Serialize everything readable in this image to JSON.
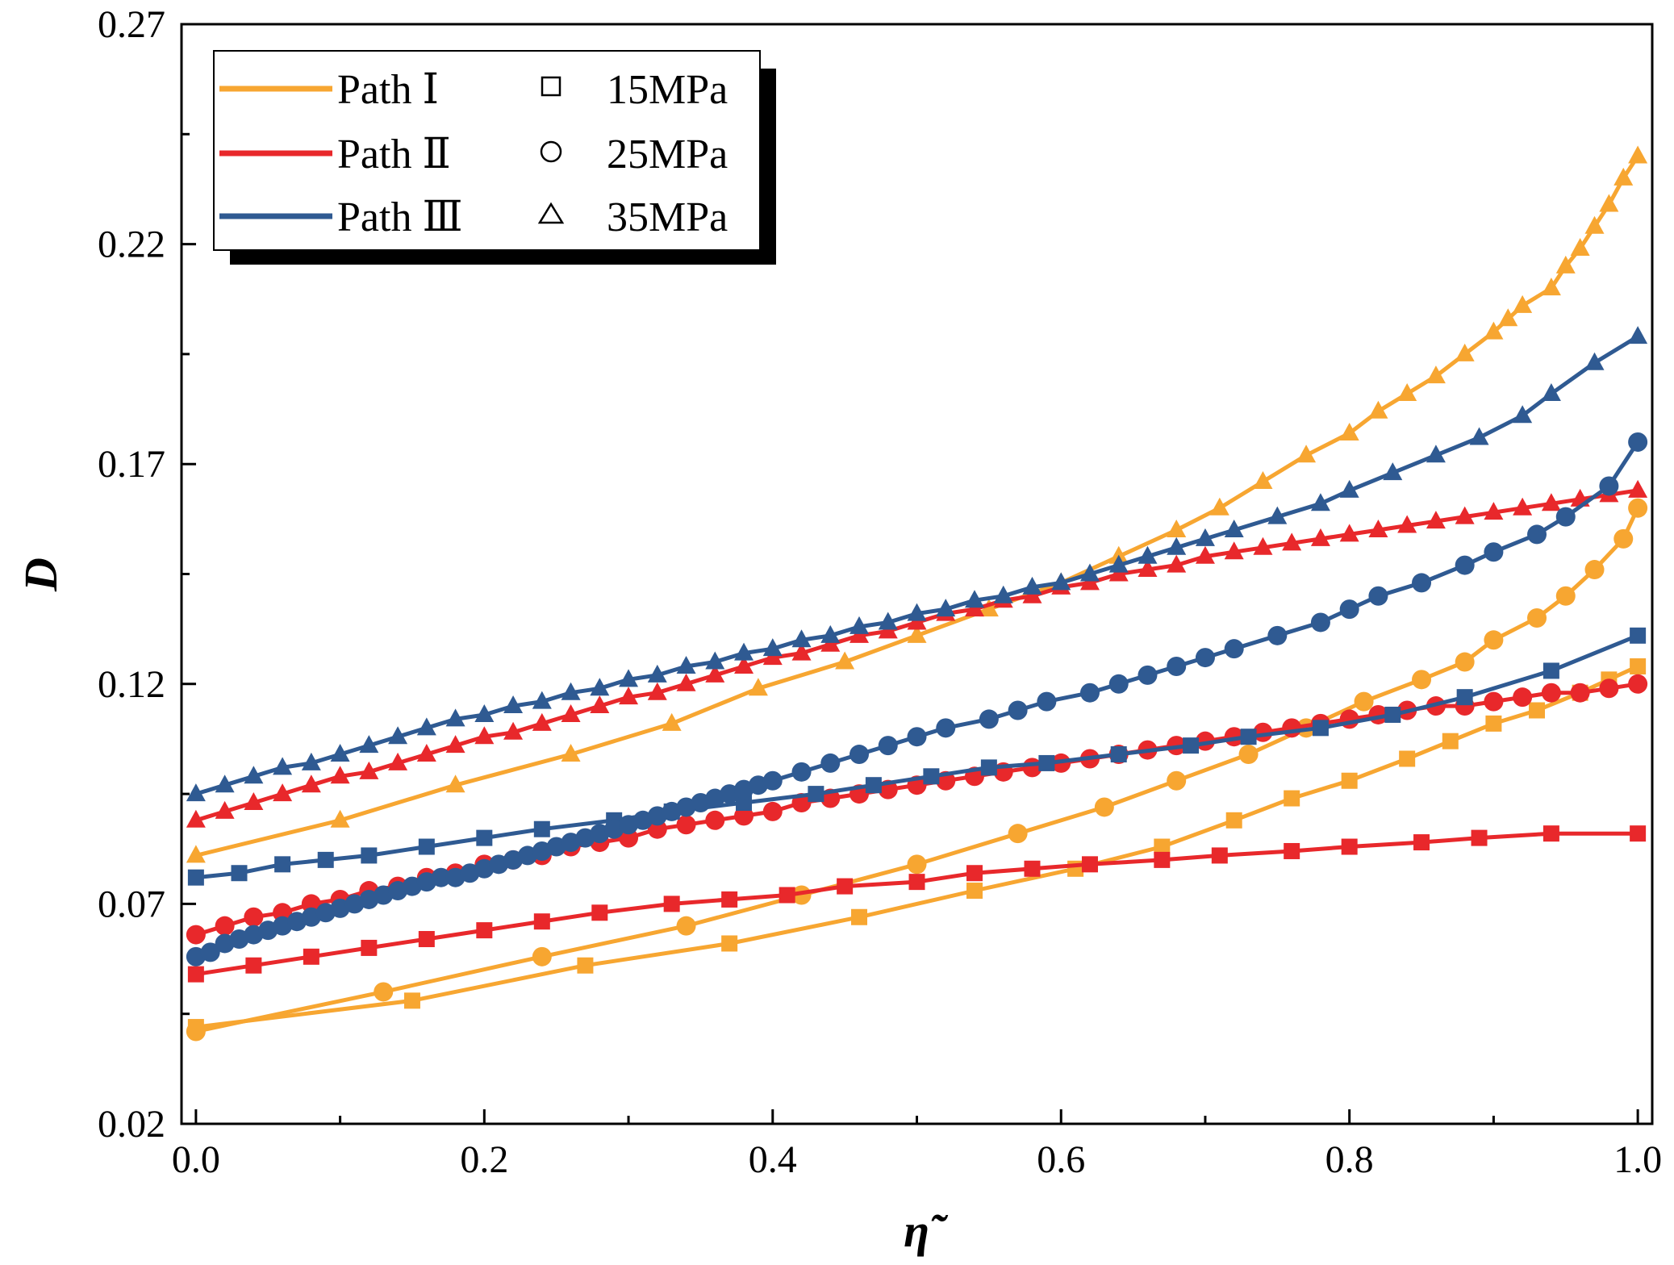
{
  "chart_data": {
    "type": "line",
    "title": "",
    "xlabel": "η̃",
    "ylabel": "D",
    "xlim": [
      -0.01,
      1.01
    ],
    "ylim": [
      0.02,
      0.27
    ],
    "xticks": [
      0.0,
      0.2,
      0.4,
      0.6,
      0.8,
      1.0
    ],
    "xtick_labels": [
      "0.0",
      "0.2",
      "0.4",
      "0.6",
      "0.8",
      "1.0"
    ],
    "yticks": [
      0.02,
      0.07,
      0.12,
      0.17,
      0.22,
      0.27
    ],
    "ytick_labels": [
      "0.02",
      "0.07",
      "0.12",
      "0.17",
      "0.22",
      "0.27"
    ],
    "grid": false,
    "legend_position": "top-left",
    "legend": {
      "paths": [
        {
          "label": "Path Ⅰ",
          "color": "#F7A631"
        },
        {
          "label": "Path Ⅱ",
          "color": "#E8282B"
        },
        {
          "label": "Path Ⅲ",
          "color": "#2F5A92"
        }
      ],
      "pressures": [
        {
          "label": "15MPa",
          "marker": "square"
        },
        {
          "label": "25MPa",
          "marker": "circle"
        },
        {
          "label": "35MPa",
          "marker": "triangle"
        }
      ]
    },
    "series": [
      {
        "path": "Path Ⅰ",
        "pressure": "15MPa",
        "color": "#F7A631",
        "marker": "square",
        "x": [
          0.0,
          0.15,
          0.27,
          0.37,
          0.46,
          0.54,
          0.61,
          0.67,
          0.72,
          0.76,
          0.8,
          0.84,
          0.87,
          0.9,
          0.93,
          0.96,
          0.98,
          1.0
        ],
        "y": [
          0.042,
          0.048,
          0.056,
          0.061,
          0.067,
          0.073,
          0.078,
          0.083,
          0.089,
          0.094,
          0.098,
          0.103,
          0.107,
          0.111,
          0.114,
          0.118,
          0.121,
          0.124
        ]
      },
      {
        "path": "Path Ⅰ",
        "pressure": "25MPa",
        "color": "#F7A631",
        "marker": "circle",
        "x": [
          0.0,
          0.13,
          0.24,
          0.34,
          0.42,
          0.5,
          0.57,
          0.63,
          0.68,
          0.73,
          0.77,
          0.81,
          0.85,
          0.88,
          0.9,
          0.93,
          0.95,
          0.97,
          0.99,
          1.0
        ],
        "y": [
          0.041,
          0.05,
          0.058,
          0.065,
          0.072,
          0.079,
          0.086,
          0.092,
          0.098,
          0.104,
          0.11,
          0.116,
          0.121,
          0.125,
          0.13,
          0.135,
          0.14,
          0.146,
          0.153,
          0.16
        ]
      },
      {
        "path": "Path Ⅰ",
        "pressure": "35MPa",
        "color": "#F7A631",
        "marker": "triangle",
        "x": [
          0.0,
          0.1,
          0.18,
          0.26,
          0.33,
          0.39,
          0.45,
          0.5,
          0.55,
          0.6,
          0.64,
          0.68,
          0.71,
          0.74,
          0.77,
          0.8,
          0.82,
          0.84,
          0.86,
          0.88,
          0.9,
          0.91,
          0.92,
          0.94,
          0.95,
          0.96,
          0.97,
          0.98,
          0.99,
          1.0
        ],
        "y": [
          0.081,
          0.089,
          0.097,
          0.104,
          0.111,
          0.119,
          0.125,
          0.131,
          0.137,
          0.143,
          0.149,
          0.155,
          0.16,
          0.166,
          0.172,
          0.177,
          0.182,
          0.186,
          0.19,
          0.195,
          0.2,
          0.203,
          0.206,
          0.21,
          0.215,
          0.219,
          0.224,
          0.229,
          0.235,
          0.24
        ]
      },
      {
        "path": "Path Ⅱ",
        "pressure": "15MPa",
        "color": "#E8282B",
        "marker": "square",
        "x": [
          0.0,
          0.04,
          0.08,
          0.12,
          0.16,
          0.2,
          0.24,
          0.28,
          0.33,
          0.37,
          0.41,
          0.45,
          0.5,
          0.54,
          0.58,
          0.62,
          0.67,
          0.71,
          0.76,
          0.8,
          0.85,
          0.89,
          0.94,
          1.0
        ],
        "y": [
          0.054,
          0.056,
          0.058,
          0.06,
          0.062,
          0.064,
          0.066,
          0.068,
          0.07,
          0.071,
          0.072,
          0.074,
          0.075,
          0.077,
          0.078,
          0.079,
          0.08,
          0.081,
          0.082,
          0.083,
          0.084,
          0.085,
          0.086,
          0.086
        ]
      },
      {
        "path": "Path Ⅱ",
        "pressure": "25MPa",
        "color": "#E8282B",
        "marker": "circle",
        "x": [
          0.0,
          0.02,
          0.04,
          0.06,
          0.08,
          0.1,
          0.12,
          0.14,
          0.16,
          0.18,
          0.2,
          0.22,
          0.24,
          0.26,
          0.28,
          0.3,
          0.32,
          0.34,
          0.36,
          0.38,
          0.4,
          0.42,
          0.44,
          0.46,
          0.48,
          0.5,
          0.52,
          0.54,
          0.56,
          0.58,
          0.6,
          0.62,
          0.64,
          0.66,
          0.68,
          0.7,
          0.72,
          0.74,
          0.76,
          0.78,
          0.8,
          0.82,
          0.84,
          0.86,
          0.88,
          0.9,
          0.92,
          0.94,
          0.96,
          0.98,
          1.0
        ],
        "y": [
          0.063,
          0.065,
          0.067,
          0.068,
          0.07,
          0.071,
          0.073,
          0.074,
          0.076,
          0.077,
          0.079,
          0.08,
          0.081,
          0.083,
          0.084,
          0.085,
          0.087,
          0.088,
          0.089,
          0.09,
          0.091,
          0.093,
          0.094,
          0.095,
          0.096,
          0.097,
          0.098,
          0.099,
          0.1,
          0.101,
          0.102,
          0.103,
          0.104,
          0.105,
          0.106,
          0.107,
          0.108,
          0.109,
          0.11,
          0.111,
          0.112,
          0.113,
          0.114,
          0.115,
          0.115,
          0.116,
          0.117,
          0.118,
          0.118,
          0.119,
          0.12
        ]
      },
      {
        "path": "Path Ⅱ",
        "pressure": "35MPa",
        "color": "#E8282B",
        "marker": "triangle",
        "x": [
          0.0,
          0.02,
          0.04,
          0.06,
          0.08,
          0.1,
          0.12,
          0.14,
          0.16,
          0.18,
          0.2,
          0.22,
          0.24,
          0.26,
          0.28,
          0.3,
          0.32,
          0.34,
          0.36,
          0.38,
          0.4,
          0.42,
          0.44,
          0.46,
          0.48,
          0.5,
          0.52,
          0.54,
          0.56,
          0.58,
          0.6,
          0.62,
          0.64,
          0.66,
          0.68,
          0.7,
          0.72,
          0.74,
          0.76,
          0.78,
          0.8,
          0.82,
          0.84,
          0.86,
          0.88,
          0.9,
          0.92,
          0.94,
          0.96,
          0.98,
          1.0
        ],
        "y": [
          0.089,
          0.091,
          0.093,
          0.095,
          0.097,
          0.099,
          0.1,
          0.102,
          0.104,
          0.106,
          0.108,
          0.109,
          0.111,
          0.113,
          0.115,
          0.117,
          0.118,
          0.12,
          0.122,
          0.124,
          0.126,
          0.127,
          0.129,
          0.131,
          0.132,
          0.134,
          0.136,
          0.137,
          0.139,
          0.14,
          0.142,
          0.143,
          0.145,
          0.146,
          0.147,
          0.149,
          0.15,
          0.151,
          0.152,
          0.153,
          0.154,
          0.155,
          0.156,
          0.157,
          0.158,
          0.159,
          0.16,
          0.161,
          0.162,
          0.163,
          0.164
        ]
      },
      {
        "path": "Path Ⅲ",
        "pressure": "15MPa",
        "color": "#2F5A92",
        "marker": "square",
        "x": [
          0.0,
          0.03,
          0.06,
          0.09,
          0.12,
          0.16,
          0.2,
          0.24,
          0.29,
          0.33,
          0.38,
          0.43,
          0.47,
          0.51,
          0.55,
          0.59,
          0.64,
          0.69,
          0.73,
          0.78,
          0.83,
          0.88,
          0.94,
          1.0
        ],
        "y": [
          0.076,
          0.077,
          0.079,
          0.08,
          0.081,
          0.083,
          0.085,
          0.087,
          0.089,
          0.091,
          0.093,
          0.095,
          0.097,
          0.099,
          0.101,
          0.102,
          0.104,
          0.106,
          0.108,
          0.11,
          0.113,
          0.117,
          0.123,
          0.131
        ]
      },
      {
        "path": "Path Ⅲ",
        "pressure": "25MPa",
        "color": "#2F5A92",
        "marker": "circle",
        "x": [
          0.0,
          0.01,
          0.02,
          0.03,
          0.04,
          0.05,
          0.06,
          0.07,
          0.08,
          0.09,
          0.1,
          0.11,
          0.12,
          0.13,
          0.14,
          0.15,
          0.16,
          0.17,
          0.18,
          0.19,
          0.2,
          0.21,
          0.22,
          0.23,
          0.24,
          0.25,
          0.26,
          0.27,
          0.28,
          0.29,
          0.3,
          0.31,
          0.32,
          0.33,
          0.34,
          0.35,
          0.36,
          0.37,
          0.38,
          0.39,
          0.4,
          0.42,
          0.44,
          0.46,
          0.48,
          0.5,
          0.52,
          0.55,
          0.57,
          0.59,
          0.62,
          0.64,
          0.66,
          0.68,
          0.7,
          0.72,
          0.75,
          0.78,
          0.8,
          0.82,
          0.85,
          0.88,
          0.9,
          0.93,
          0.95,
          0.98,
          1.0
        ],
        "y": [
          0.058,
          0.059,
          0.061,
          0.062,
          0.063,
          0.064,
          0.065,
          0.066,
          0.067,
          0.068,
          0.069,
          0.07,
          0.071,
          0.072,
          0.073,
          0.074,
          0.075,
          0.076,
          0.076,
          0.077,
          0.078,
          0.079,
          0.08,
          0.081,
          0.082,
          0.083,
          0.084,
          0.085,
          0.086,
          0.087,
          0.088,
          0.089,
          0.09,
          0.091,
          0.092,
          0.093,
          0.094,
          0.095,
          0.096,
          0.097,
          0.098,
          0.1,
          0.102,
          0.104,
          0.106,
          0.108,
          0.11,
          0.112,
          0.114,
          0.116,
          0.118,
          0.12,
          0.122,
          0.124,
          0.126,
          0.128,
          0.131,
          0.134,
          0.137,
          0.14,
          0.143,
          0.147,
          0.15,
          0.154,
          0.158,
          0.165,
          0.175
        ]
      },
      {
        "path": "Path Ⅲ",
        "pressure": "35MPa",
        "color": "#2F5A92",
        "marker": "triangle",
        "x": [
          0.0,
          0.02,
          0.04,
          0.06,
          0.08,
          0.1,
          0.12,
          0.14,
          0.16,
          0.18,
          0.2,
          0.22,
          0.24,
          0.26,
          0.28,
          0.3,
          0.32,
          0.34,
          0.36,
          0.38,
          0.4,
          0.42,
          0.44,
          0.46,
          0.48,
          0.5,
          0.52,
          0.54,
          0.56,
          0.58,
          0.6,
          0.62,
          0.64,
          0.66,
          0.68,
          0.7,
          0.72,
          0.75,
          0.78,
          0.8,
          0.83,
          0.86,
          0.89,
          0.92,
          0.94,
          0.97,
          1.0
        ],
        "y": [
          0.095,
          0.097,
          0.099,
          0.101,
          0.102,
          0.104,
          0.106,
          0.108,
          0.11,
          0.112,
          0.113,
          0.115,
          0.116,
          0.118,
          0.119,
          0.121,
          0.122,
          0.124,
          0.125,
          0.127,
          0.128,
          0.13,
          0.131,
          0.133,
          0.134,
          0.136,
          0.137,
          0.139,
          0.14,
          0.142,
          0.143,
          0.145,
          0.147,
          0.149,
          0.151,
          0.153,
          0.155,
          0.158,
          0.161,
          0.164,
          0.168,
          0.172,
          0.176,
          0.181,
          0.186,
          0.193,
          0.199
        ]
      }
    ]
  }
}
